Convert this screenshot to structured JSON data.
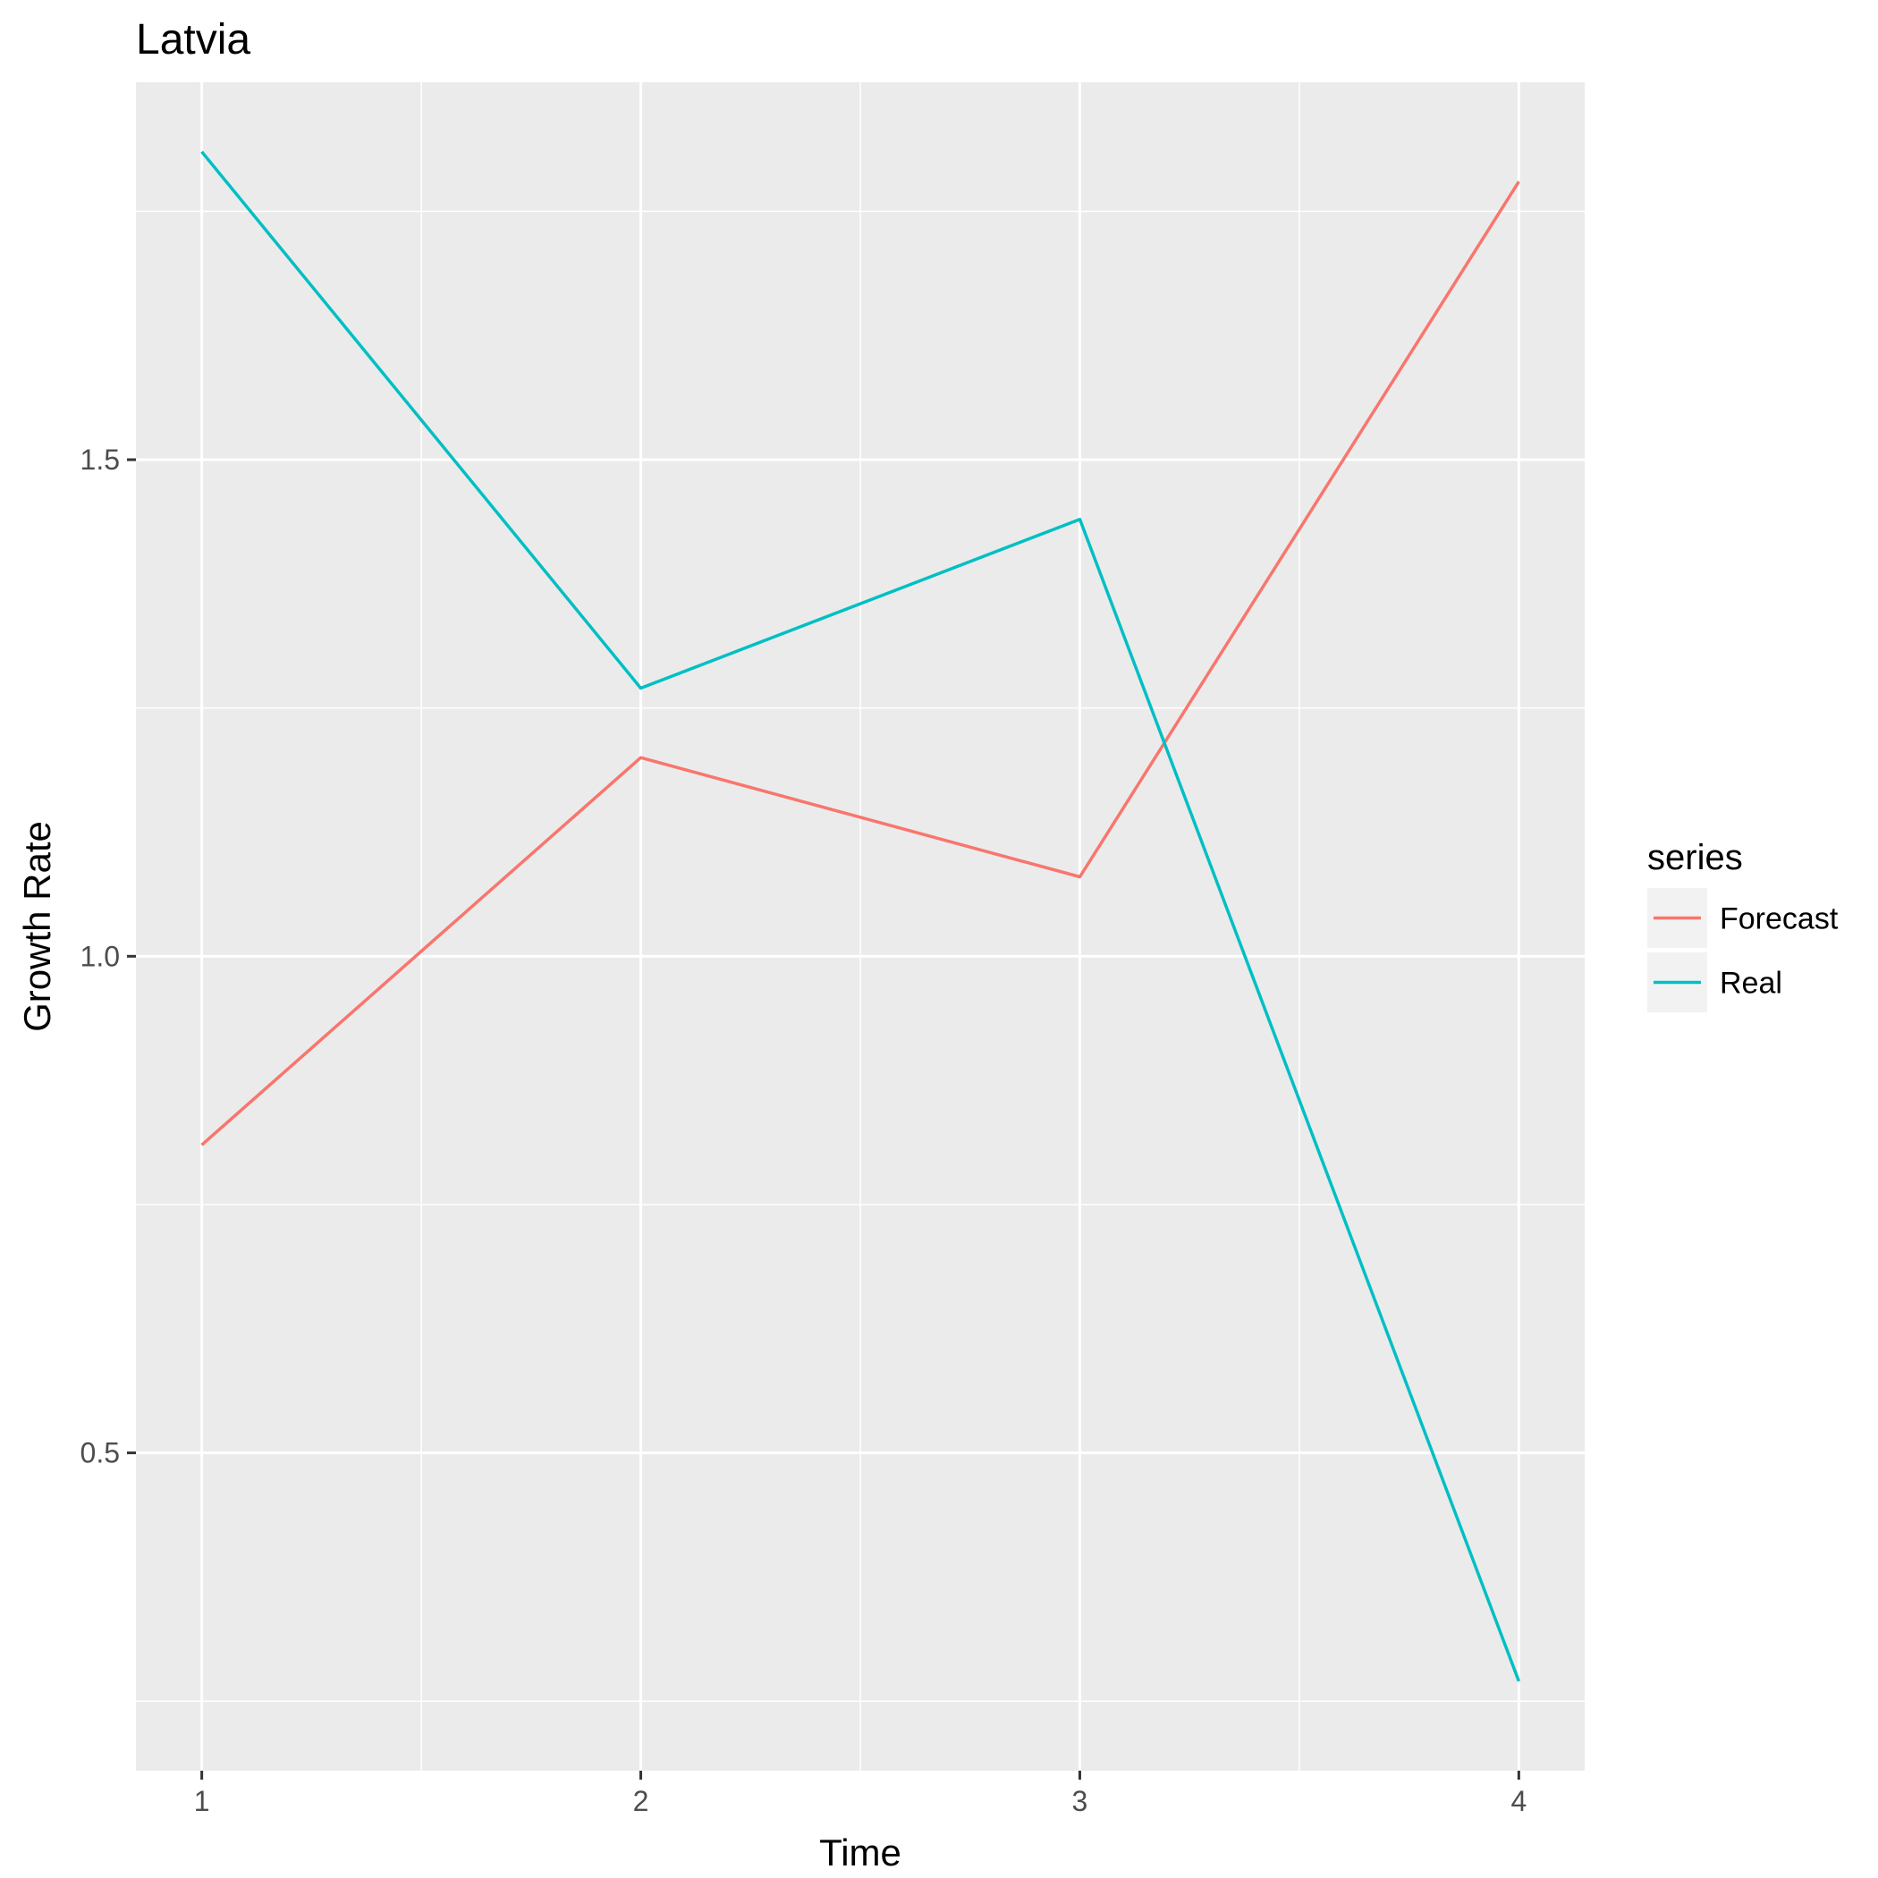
{
  "chart_data": {
    "type": "line",
    "title": "Latvia",
    "xlabel": "Time",
    "ylabel": "Growth Rate",
    "x": [
      1,
      2,
      3,
      4
    ],
    "x_ticks": [
      "1",
      "2",
      "3",
      "4"
    ],
    "xlim": [
      0.85,
      4.15
    ],
    "y_ticks": [
      "0.5",
      "1.0",
      "1.5"
    ],
    "y_tick_values": [
      0.5,
      1.0,
      1.5
    ],
    "ylim": [
      0.18,
      1.88
    ],
    "grid": true,
    "legend": {
      "title": "series",
      "position": "right"
    },
    "series": [
      {
        "name": "Forecast",
        "color": "#F8766D",
        "values": [
          0.81,
          1.2,
          1.08,
          1.78
        ]
      },
      {
        "name": "Real",
        "color": "#00BFC4",
        "values": [
          1.81,
          1.27,
          1.44,
          0.27
        ]
      }
    ],
    "colors": {
      "panel_background": "#EBEBEB",
      "grid_line": "#FFFFFF",
      "axis_tick": "#333333"
    }
  }
}
